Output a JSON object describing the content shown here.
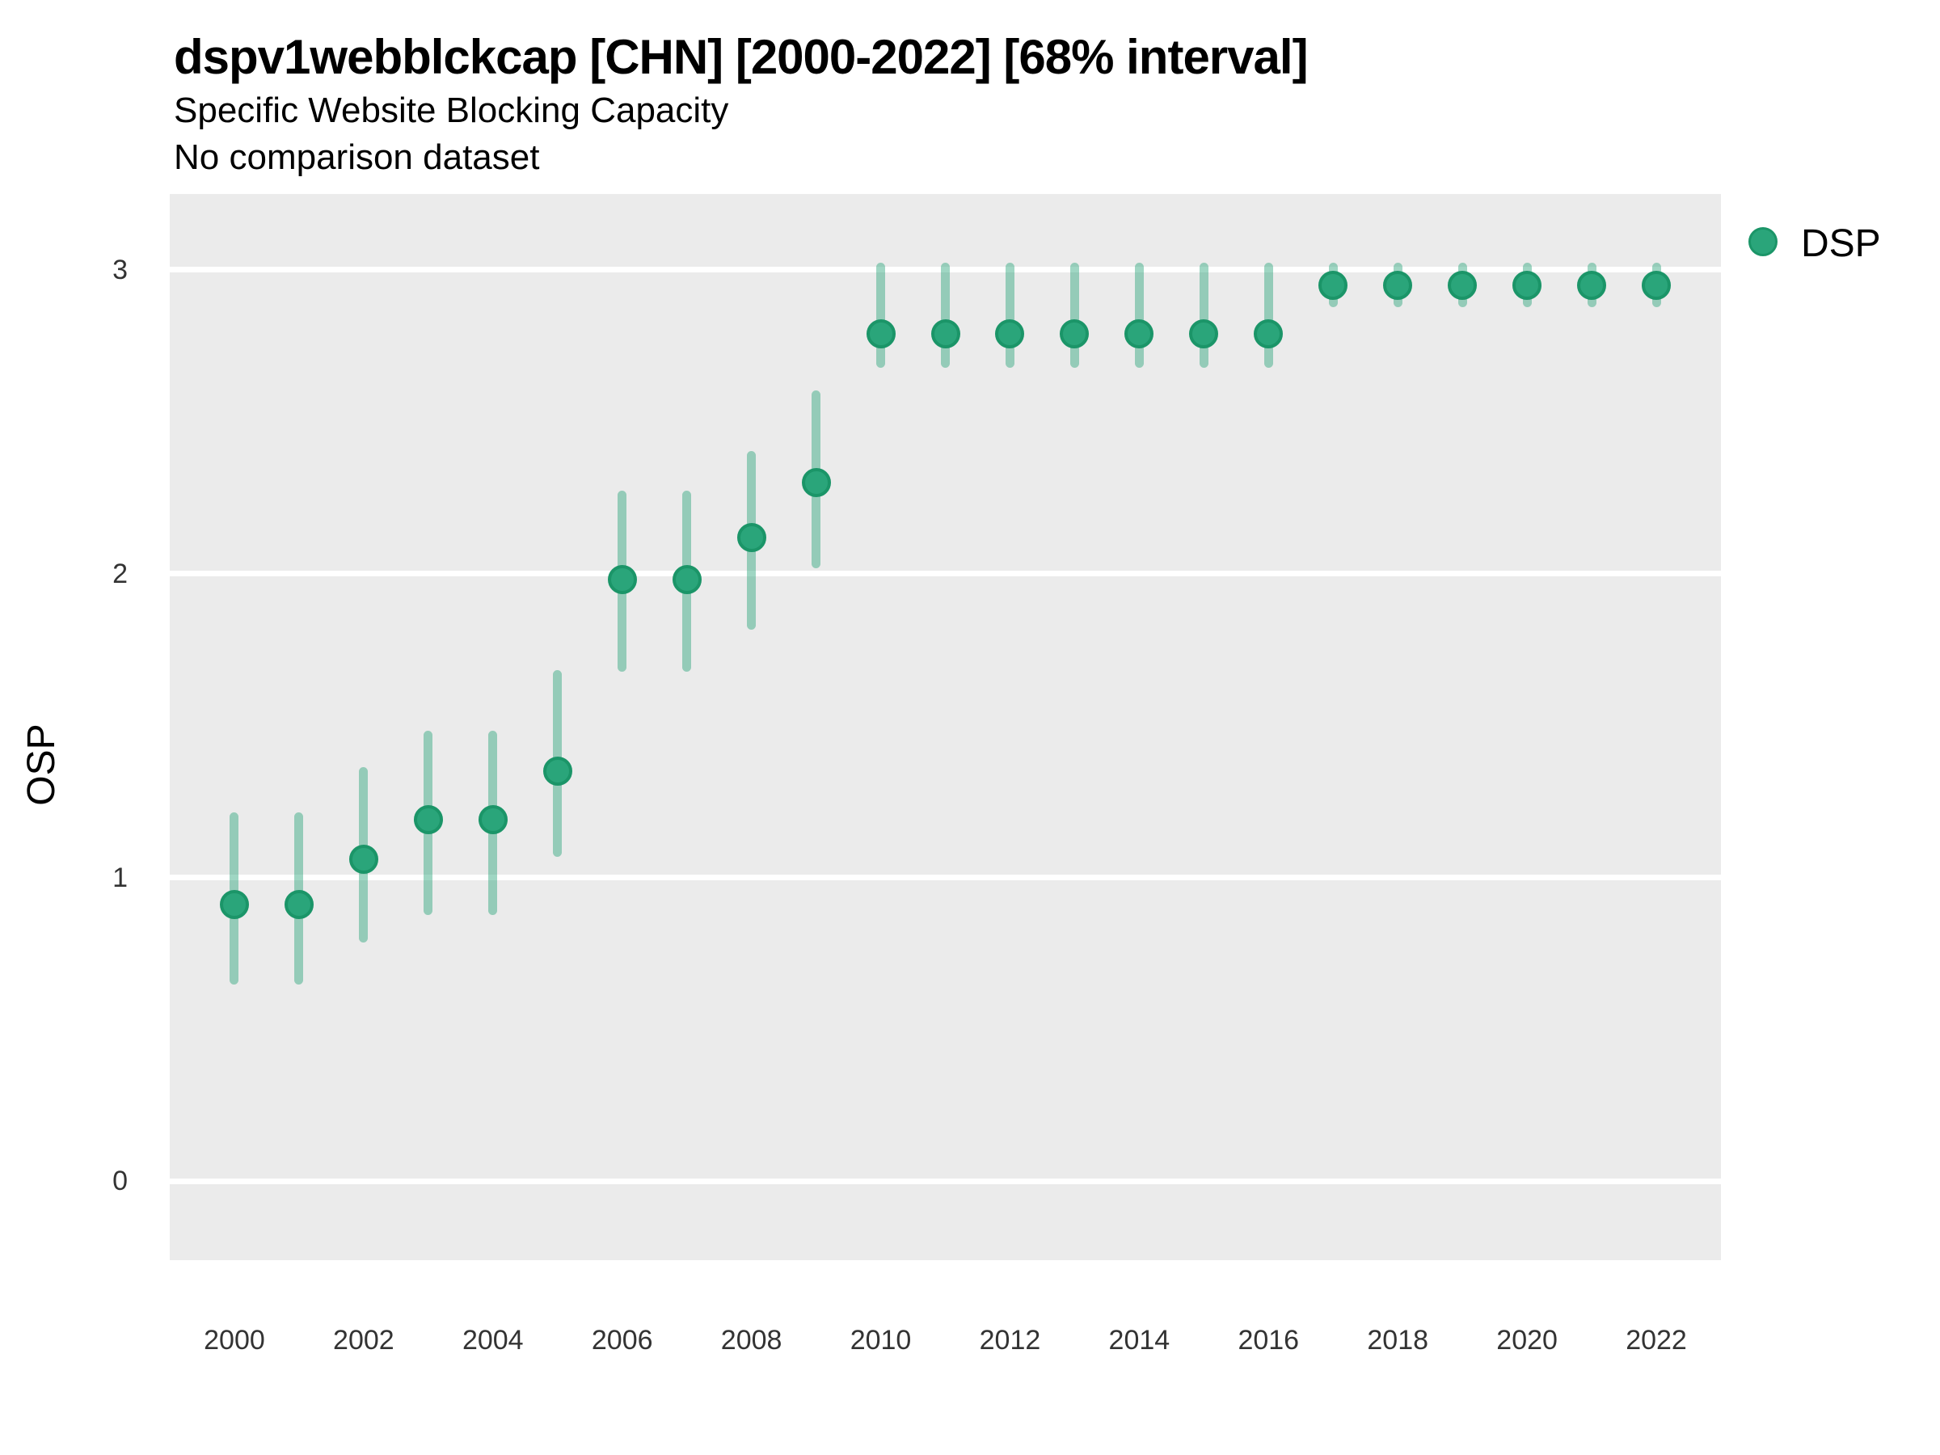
{
  "header": {
    "title": "dspv1webblckcap [CHN] [2000-2022] [68% interval]",
    "subtitle": "Specific Website Blocking Capacity",
    "note": "No comparison dataset"
  },
  "y_axis": {
    "title": "OSP"
  },
  "legend": {
    "label": "DSP"
  },
  "colors": {
    "point_fill": "#2aa57a",
    "point_border": "#1b9568",
    "interval_bar": "rgba(42,165,122,0.45)",
    "panel_background": "#ebebeb",
    "gridline": "#ffffff",
    "tick_text": "#333333"
  },
  "chart_data": {
    "type": "pointrange",
    "title": "dspv1webblckcap [CHN] [2000-2022] [68% interval]",
    "subtitle": "Specific Website Blocking Capacity",
    "note": "No comparison dataset",
    "interval_level": "68%",
    "xlabel": "",
    "ylabel": "OSP",
    "legend_position": "right",
    "grid": "major-horizontal-only",
    "x": [
      2000,
      2001,
      2002,
      2003,
      2004,
      2005,
      2006,
      2007,
      2008,
      2009,
      2010,
      2011,
      2012,
      2013,
      2014,
      2015,
      2016,
      2017,
      2018,
      2019,
      2020,
      2021,
      2022
    ],
    "series": [
      {
        "name": "DSP",
        "values": [
          0.91,
          0.91,
          1.06,
          1.19,
          1.19,
          1.35,
          1.98,
          1.98,
          2.12,
          2.3,
          2.79,
          2.79,
          2.79,
          2.79,
          2.79,
          2.79,
          2.79,
          2.95,
          2.95,
          2.95,
          2.95,
          2.95,
          2.95
        ],
        "lower": [
          0.66,
          0.66,
          0.8,
          0.89,
          0.89,
          1.08,
          1.69,
          1.69,
          1.83,
          2.03,
          2.69,
          2.69,
          2.69,
          2.69,
          2.69,
          2.69,
          2.69,
          2.89,
          2.89,
          2.89,
          2.89,
          2.89,
          2.89
        ],
        "upper": [
          1.2,
          1.2,
          1.35,
          1.47,
          1.47,
          1.67,
          2.26,
          2.26,
          2.39,
          2.59,
          3.01,
          3.01,
          3.01,
          3.01,
          3.01,
          3.01,
          3.01,
          3.01,
          3.01,
          3.01,
          3.01,
          3.01,
          3.01
        ]
      }
    ],
    "x_ticks": [
      2000,
      2002,
      2004,
      2006,
      2008,
      2010,
      2012,
      2014,
      2016,
      2018,
      2020,
      2022
    ],
    "y_ticks": [
      0,
      1,
      2,
      3
    ],
    "xlim": [
      1999,
      2023
    ],
    "ylim": [
      -0.26,
      3.25
    ]
  }
}
